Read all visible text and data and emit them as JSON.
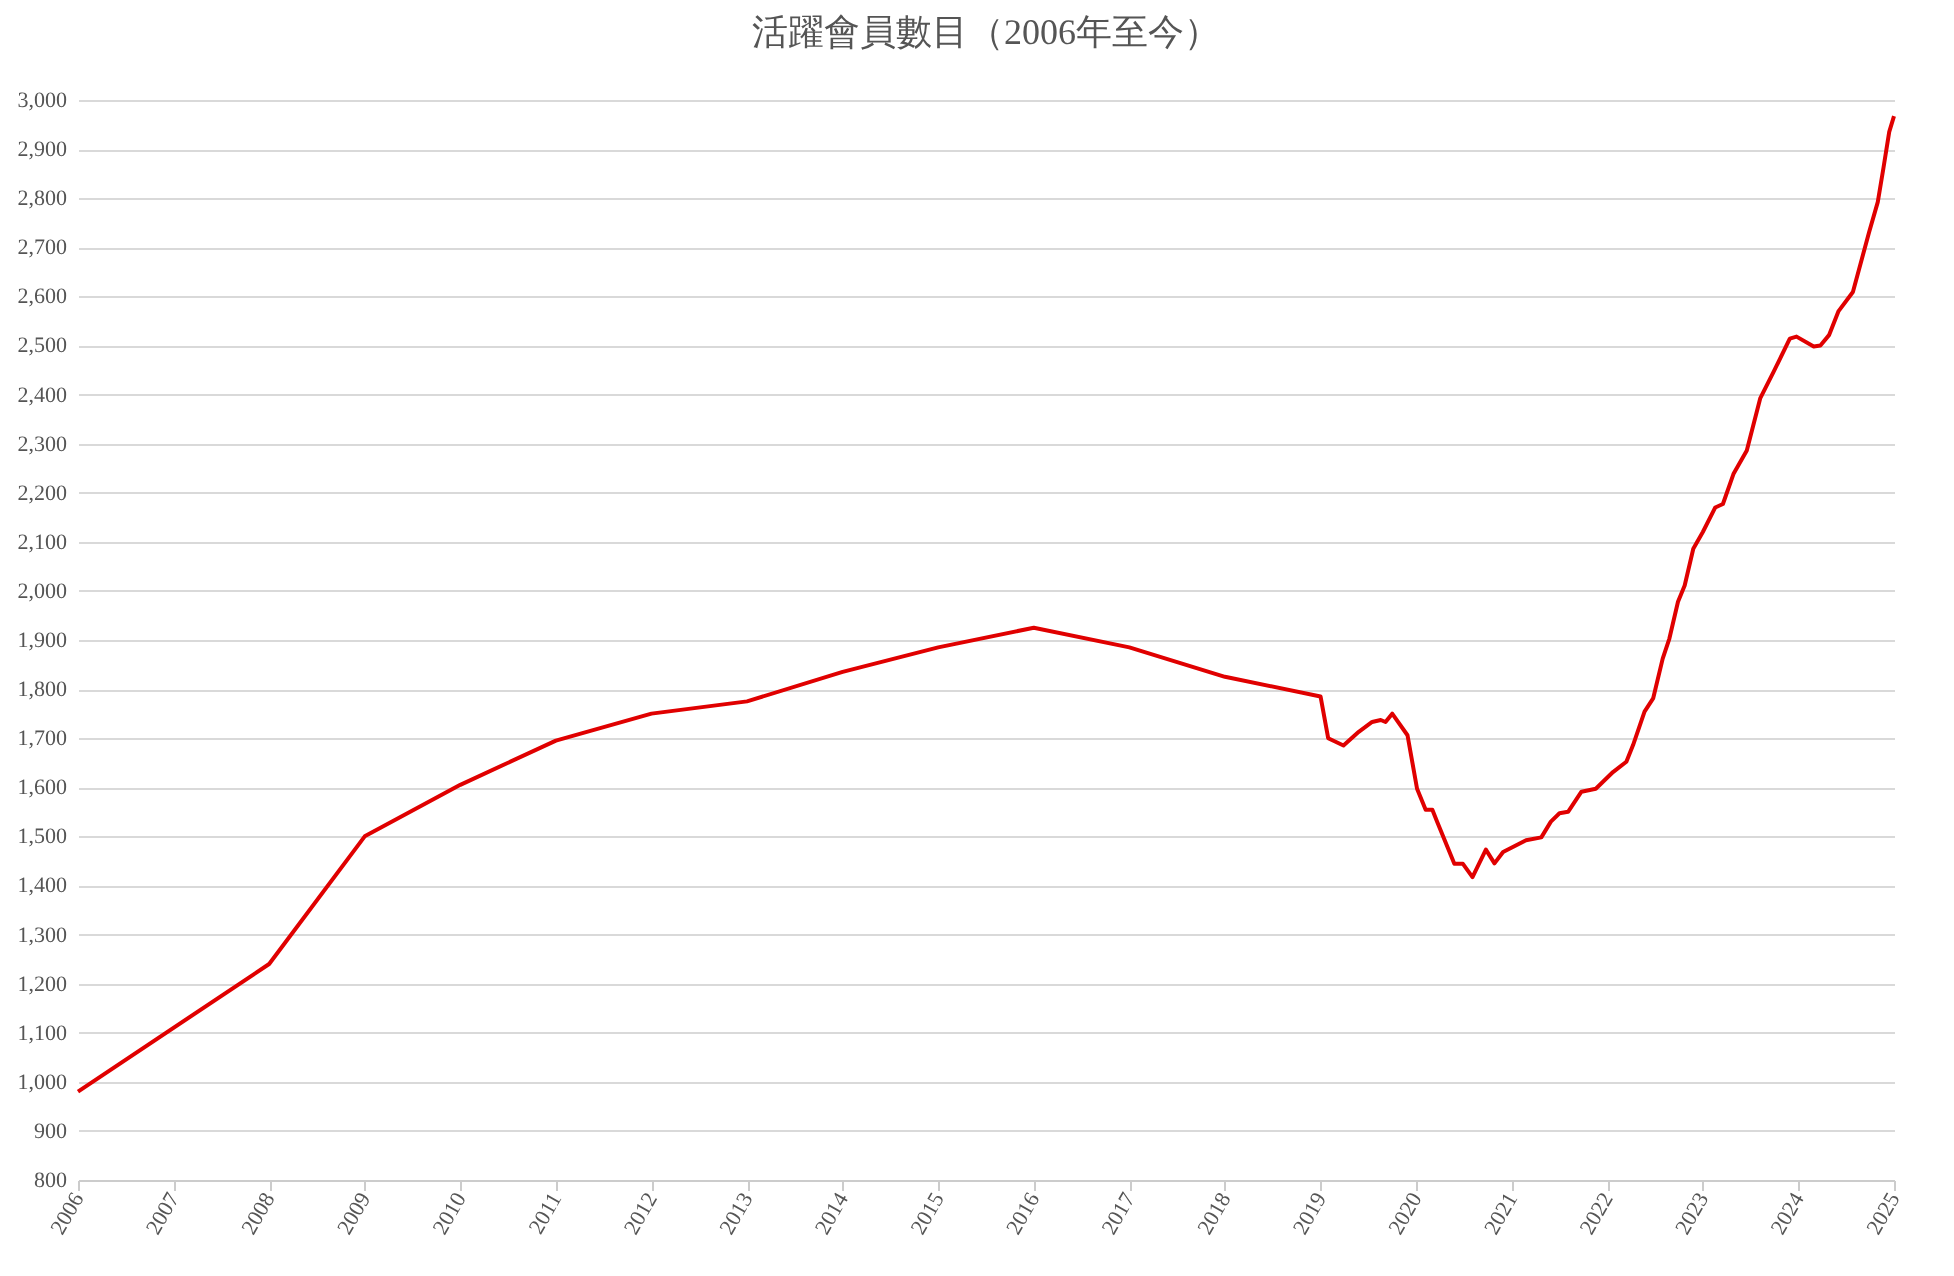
{
  "chart_data": {
    "type": "line",
    "title": "活躍會員數目（2006年至今）",
    "x": [
      2006,
      2008,
      2009,
      2010,
      2011,
      2012,
      2013,
      2014,
      2015,
      2016,
      2017,
      2018,
      2019,
      2019.08,
      2019.24,
      2019.4,
      2019.54,
      2019.63,
      2019.68,
      2019.75,
      2019.91,
      2020.01,
      2020.1,
      2020.17,
      2020.22,
      2020.4,
      2020.49,
      2020.59,
      2020.73,
      2020.82,
      2020.91,
      2021.15,
      2021.31,
      2021.41,
      2021.5,
      2021.59,
      2021.73,
      2021.88,
      2022.06,
      2022.2,
      2022.27,
      2022.39,
      2022.48,
      2022.58,
      2022.65,
      2022.74,
      2022.81,
      2022.9,
      2023,
      2023.13,
      2023.21,
      2023.32,
      2023.46,
      2023.6,
      2023.74,
      2023.91,
      2023.98,
      2024.16,
      2024.23,
      2024.32,
      2024.42,
      2024.57,
      2024.74,
      2024.83,
      2024.89,
      2024.95,
      2025
    ],
    "series": [
      {
        "color": "#e00000",
        "values": [
          980,
          1240,
          1500,
          1605,
          1695,
          1750,
          1775,
          1835,
          1885,
          1925,
          1885,
          1825,
          1785,
          1700,
          1685,
          1713,
          1733,
          1737,
          1733,
          1750,
          1706,
          1597,
          1554,
          1554,
          1530,
          1444,
          1444,
          1417,
          1473,
          1445,
          1468,
          1492,
          1498,
          1530,
          1547,
          1550,
          1591,
          1597,
          1631,
          1652,
          1686,
          1754,
          1781,
          1862,
          1903,
          1978,
          2011,
          2086,
          2120,
          2170,
          2177,
          2238,
          2286,
          2392,
          2446,
          2514,
          2518,
          2498,
          2500,
          2521,
          2570,
          2609,
          2731,
          2792,
          2862,
          2935,
          2967
        ]
      }
    ],
    "xlim": [
      2006,
      2025
    ],
    "xticks": [
      2006,
      2007,
      2008,
      2009,
      2010,
      2011,
      2012,
      2013,
      2014,
      2015,
      2016,
      2017,
      2018,
      2019,
      2020,
      2021,
      2022,
      2023,
      2024,
      2025
    ],
    "ylim": [
      800,
      3000
    ],
    "yticks": [
      800,
      900,
      {
        "value": 1000,
        "label": "1,000"
      },
      {
        "value": 1100,
        "label": "1,100"
      },
      {
        "value": 1200,
        "label": "1,200"
      },
      {
        "value": 1300,
        "label": "1,300"
      },
      {
        "value": 1400,
        "label": "1,400"
      },
      {
        "value": 1500,
        "label": "1,500"
      },
      {
        "value": 1600,
        "label": "1,600"
      },
      {
        "value": 1700,
        "label": "1,700"
      },
      {
        "value": 1800,
        "label": "1,800"
      },
      {
        "value": 1900,
        "label": "1,900"
      },
      {
        "value": 2000,
        "label": "2,000"
      },
      {
        "value": 2100,
        "label": "2,100"
      },
      {
        "value": 2200,
        "label": "2,200"
      },
      {
        "value": 2300,
        "label": "2,300"
      },
      {
        "value": 2400,
        "label": "2,400"
      },
      {
        "value": 2500,
        "label": "2,500"
      },
      {
        "value": 2600,
        "label": "2,600"
      },
      {
        "value": 2700,
        "label": "2,700"
      },
      {
        "value": 2800,
        "label": "2,800"
      },
      {
        "value": 2900,
        "label": "2,900"
      },
      {
        "value": 3000,
        "label": "3,000"
      }
    ],
    "grid": "y",
    "marker": "none",
    "line_style": "solid"
  }
}
